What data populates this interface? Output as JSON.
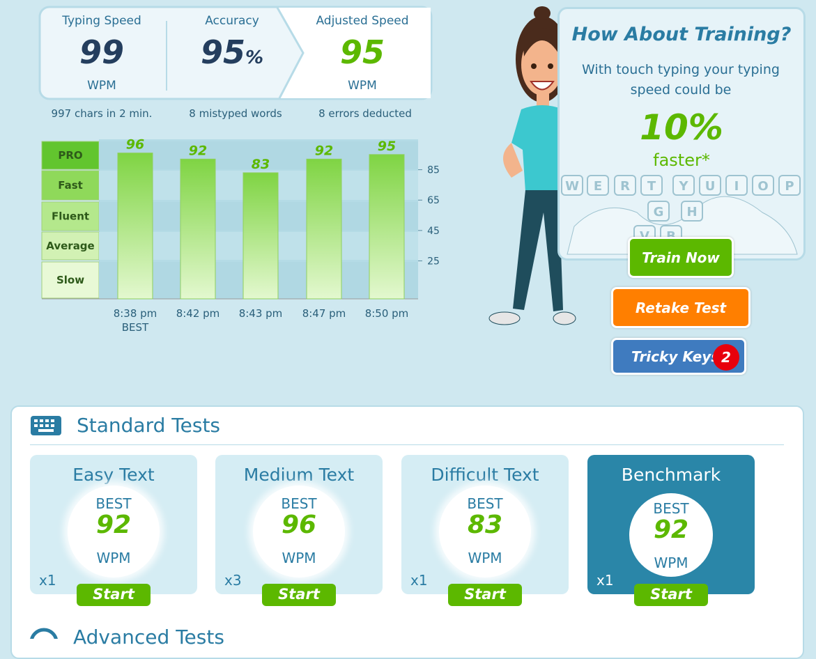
{
  "stats": [
    {
      "label": "Typing Speed",
      "value": "99",
      "unit": "WPM",
      "note": "997 chars in 2 min."
    },
    {
      "label": "Accuracy",
      "value": "95",
      "unit": "%",
      "note": "8 mistyped words"
    },
    {
      "label": "Adjusted Speed",
      "value": "95",
      "unit": "WPM",
      "note": "8 errors deducted"
    }
  ],
  "history": {
    "type": "bar",
    "levels": [
      "PRO",
      "Fast",
      "Fluent",
      "Average",
      "Slow"
    ],
    "categories": [
      "8:38 pm",
      "8:42 pm",
      "8:43 pm",
      "8:47 pm",
      "8:50 pm"
    ],
    "best_label": "BEST",
    "values": [
      96,
      92,
      83,
      92,
      95
    ],
    "ylim": [
      0,
      105
    ],
    "yticks": [
      25,
      45,
      65,
      85
    ]
  },
  "training": {
    "title": "How About Training?",
    "text": "With touch typing your typing speed could be",
    "percent": "10%",
    "suffix": "faster*",
    "keyboard_keys": [
      "W",
      "E",
      "R",
      "T",
      "Y",
      "U",
      "I",
      "O",
      "P",
      "G",
      "H",
      "V",
      "B"
    ]
  },
  "buttons": {
    "train": "Train Now",
    "retake": "Retake Test",
    "tricky": "Tricky Keys",
    "tricky_count": "2"
  },
  "standard_tests": {
    "title": "Standard Tests",
    "cards": [
      {
        "name": "Easy Text",
        "best_label": "BEST",
        "best": "92",
        "unit": "WPM",
        "count": "x1",
        "button": "Start"
      },
      {
        "name": "Medium Text",
        "best_label": "BEST",
        "best": "96",
        "unit": "WPM",
        "count": "x3",
        "button": "Start"
      },
      {
        "name": "Difficult Text",
        "best_label": "BEST",
        "best": "83",
        "unit": "WPM",
        "count": "x1",
        "button": "Start"
      },
      {
        "name": "Benchmark",
        "best_label": "BEST",
        "best": "92",
        "unit": "WPM",
        "count": "x1",
        "button": "Start"
      }
    ]
  },
  "advanced_tests": {
    "title": "Advanced Tests"
  }
}
